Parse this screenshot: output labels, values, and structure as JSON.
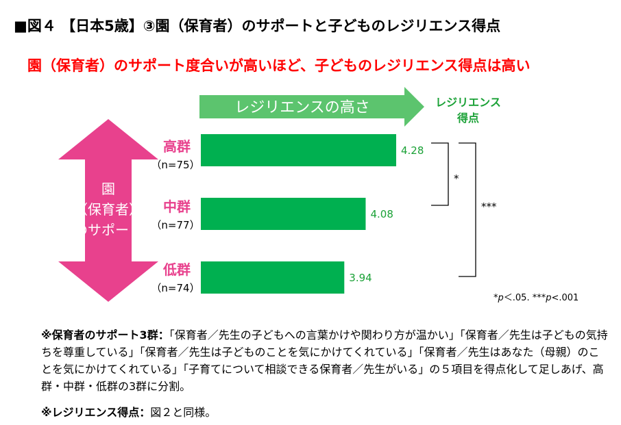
{
  "title": "■図４ 【日本5歳】③園（保育者）のサポートと子どものレジリエンス得点",
  "subtitle": "園（保育者）のサポート度合いが高いほど、子どものレジリエンス得点は高い",
  "colors": {
    "bar": "#00b050",
    "pink": "#e8418d",
    "arrow_green": "#5cc46e",
    "label_green": "#1aa136",
    "red": "#ff0000"
  },
  "arrow_label": "レジリエンスの高さ",
  "score_header": [
    "レジリエンス",
    "得点"
  ],
  "left_arrow_label": [
    "園",
    "（保育者）",
    "のサポート"
  ],
  "chart_data": {
    "type": "bar",
    "orientation": "horizontal",
    "categories": [
      "高群",
      "中群",
      "低群"
    ],
    "n_labels": [
      "（n=75）",
      "（n=77）",
      "（n=74）"
    ],
    "values": [
      4.28,
      4.08,
      3.94
    ],
    "value_labels": [
      "4.28",
      "4.08",
      "3.94"
    ],
    "significance": [
      {
        "between": [
          "高群",
          "中群"
        ],
        "label": "*"
      },
      {
        "between": [
          "高群",
          "低群"
        ],
        "label": "***"
      }
    ]
  },
  "p_note": {
    "p1": "p",
    "t1": "＜.05. ***",
    "p2": "p",
    "t2": "<.001",
    "star": "*"
  },
  "note1_bold": "※保育者のサポート3群：",
  "note1_text": "「保育者／先生の子どもへの言葉かけや関わり方が温かい」「保育者／先生は子どもの気持ちを尊重している」「保育者／先生は子どものことを気にかけてくれている」「保育者／先生はあなた（母親）のことを気にかけてくれている」「子育てについて相談できる保育者／先生がいる」の５項目を得点化して足しあげ、高群・中群・低群の3群に分割。",
  "note2_bold": "※レジリエンス得点：",
  "note2_text": "図２と同様。"
}
